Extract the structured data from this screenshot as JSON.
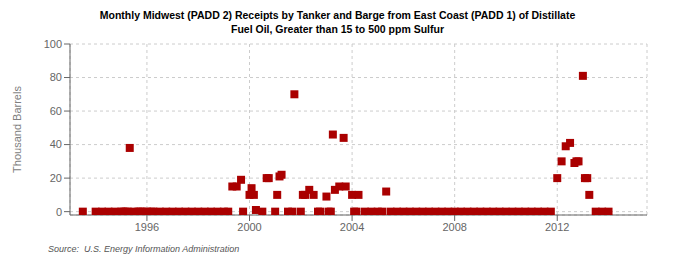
{
  "chart_data": {
    "type": "scatter",
    "title": "Monthly Midwest (PADD 2) Receipts by Tanker and Barge from East Coast (PADD 1) of Distillate\nFuel Oil, Greater than 15 to 500 ppm Sulfur",
    "ylabel": "Thousand Barrels",
    "annotations": [
      "Source:  U.S. Energy Information Administration"
    ],
    "color": "#aa0000",
    "marker": "square",
    "grid": true,
    "xlim": [
      1993.0,
      2015.5
    ],
    "ylim": [
      -2,
      100
    ],
    "xticks": [
      1996,
      2000,
      2004,
      2008,
      2012
    ],
    "yticks": [
      0,
      20,
      40,
      60,
      80,
      100
    ],
    "x": [
      1993.5,
      1994.0,
      1994.25,
      1994.5,
      1994.75,
      1995.0,
      1995.08,
      1995.17,
      1995.25,
      1995.33,
      1995.5,
      1995.67,
      1995.75,
      1995.83,
      1996.0,
      1996.17,
      1996.25,
      1996.5,
      1996.75,
      1997.0,
      1997.25,
      1997.5,
      1997.75,
      1998.0,
      1998.25,
      1998.5,
      1998.75,
      1999.0,
      1999.17,
      1999.33,
      1999.5,
      1999.67,
      1999.75,
      2000.0,
      2000.08,
      2000.17,
      2000.25,
      2000.5,
      2000.67,
      2000.75,
      2001.0,
      2001.08,
      2001.17,
      2001.25,
      2001.5,
      2001.67,
      2001.75,
      2002.0,
      2002.08,
      2002.17,
      2002.33,
      2002.5,
      2002.67,
      2002.75,
      2003.0,
      2003.08,
      2003.17,
      2003.25,
      2003.33,
      2003.5,
      2003.67,
      2003.75,
      2004.0,
      2004.08,
      2004.17,
      2004.25,
      2004.5,
      2004.75,
      2005.0,
      2005.17,
      2005.33,
      2005.5,
      2005.75,
      2006.0,
      2006.25,
      2006.5,
      2006.75,
      2007.0,
      2007.25,
      2007.5,
      2007.75,
      2008.0,
      2008.25,
      2008.5,
      2008.75,
      2009.0,
      2009.25,
      2009.5,
      2009.75,
      2010.0,
      2010.25,
      2010.5,
      2010.75,
      2011.0,
      2011.25,
      2011.5,
      2011.75,
      2012.0,
      2012.17,
      2012.33,
      2012.5,
      2012.67,
      2012.75,
      2012.83,
      2013.0,
      2013.08,
      2013.17,
      2013.25,
      2013.5,
      2013.75,
      2014.0
    ],
    "values": [
      0,
      0,
      0,
      0,
      0,
      0,
      0,
      0,
      0,
      38,
      0,
      0,
      0,
      0,
      0,
      0,
      0,
      0,
      0,
      0,
      0,
      0,
      0,
      0,
      0,
      0,
      0,
      0,
      0,
      15,
      15,
      19,
      0,
      10,
      14,
      10,
      1,
      0,
      20,
      20,
      0,
      10,
      21,
      22,
      0,
      0,
      70,
      0,
      10,
      10,
      13,
      10,
      0,
      0,
      9,
      0,
      0,
      46,
      13,
      15,
      44,
      15,
      10,
      0,
      0,
      10,
      0,
      0,
      0,
      0,
      12,
      0,
      0,
      0,
      0,
      0,
      0,
      0,
      0,
      0,
      0,
      0,
      0,
      0,
      0,
      0,
      0,
      0,
      0,
      0,
      0,
      0,
      0,
      0,
      0,
      0,
      0,
      20,
      30,
      39,
      41,
      29,
      30,
      30,
      81,
      20,
      20,
      10,
      0,
      0,
      0
    ]
  }
}
